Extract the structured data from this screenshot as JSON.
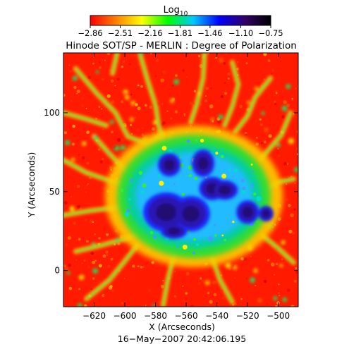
{
  "chart_data": {
    "type": "heatmap",
    "title": "Hinode SOT/SP - MERLIN : Degree of Polarization",
    "colorbar": {
      "label_main": "Log",
      "label_sub": "10",
      "ticks": [
        -2.86,
        -2.51,
        -2.16,
        -1.81,
        -1.46,
        -1.1,
        -0.75
      ],
      "tick_labels": [
        "−2.86",
        "−2.51",
        "−2.16",
        "−1.81",
        "−1.46",
        "−1.10",
        "−0.75"
      ],
      "colormap": [
        "#ff0000",
        "#ff7f00",
        "#ffff00",
        "#00ff00",
        "#00c8ff",
        "#0000ff",
        "#330066",
        "#000000"
      ]
    },
    "xlabel": "X (Arcseconds)",
    "ylabel": "Y (Arcseconds)",
    "xlim": [
      -640,
      -487
    ],
    "ylim": [
      -23,
      138
    ],
    "xticks": [
      -620,
      -600,
      -580,
      -560,
      -540,
      -520,
      -500
    ],
    "xtick_labels": [
      "−620",
      "−600",
      "−580",
      "−560",
      "−540",
      "−520",
      "−500"
    ],
    "yticks": [
      0,
      50,
      100
    ],
    "ytick_labels": [
      "0",
      "50",
      "100"
    ],
    "footer": "16−May−2007 20:42:06.195",
    "sunspot_cores": [
      {
        "x": -573,
        "y": 37,
        "rx": 12,
        "ry": 10
      },
      {
        "x": -557,
        "y": 36,
        "rx": 10,
        "ry": 9
      },
      {
        "x": -543,
        "y": 52,
        "rx": 7,
        "ry": 6
      },
      {
        "x": -535,
        "y": 51,
        "rx": 7,
        "ry": 5
      },
      {
        "x": -549,
        "y": 68,
        "rx": 6,
        "ry": 7
      },
      {
        "x": -571,
        "y": 67,
        "rx": 6,
        "ry": 6
      },
      {
        "x": -520,
        "y": 37,
        "rx": 6,
        "ry": 6
      },
      {
        "x": -508,
        "y": 36,
        "rx": 4,
        "ry": 4
      },
      {
        "x": -568,
        "y": 25,
        "rx": 7,
        "ry": 4
      }
    ]
  }
}
